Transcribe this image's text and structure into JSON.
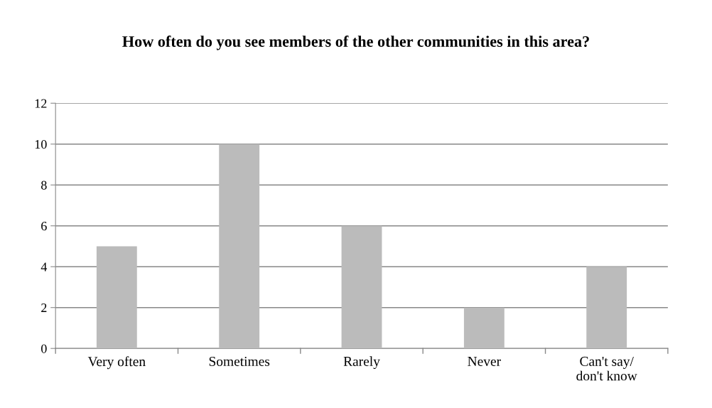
{
  "chart_data": {
    "type": "bar",
    "title": "How often do you see members of the other communities in this area?",
    "categories": [
      "Very often",
      "Sometimes",
      "Rarely",
      "Never",
      "Can't say/\ndon't know"
    ],
    "values": [
      5,
      10,
      6,
      2,
      4
    ],
    "color": "#bbbbbb",
    "ylim": [
      0,
      12
    ],
    "yticks": [
      0,
      2,
      4,
      6,
      8,
      10,
      12
    ],
    "grid": "y",
    "legend": false
  }
}
